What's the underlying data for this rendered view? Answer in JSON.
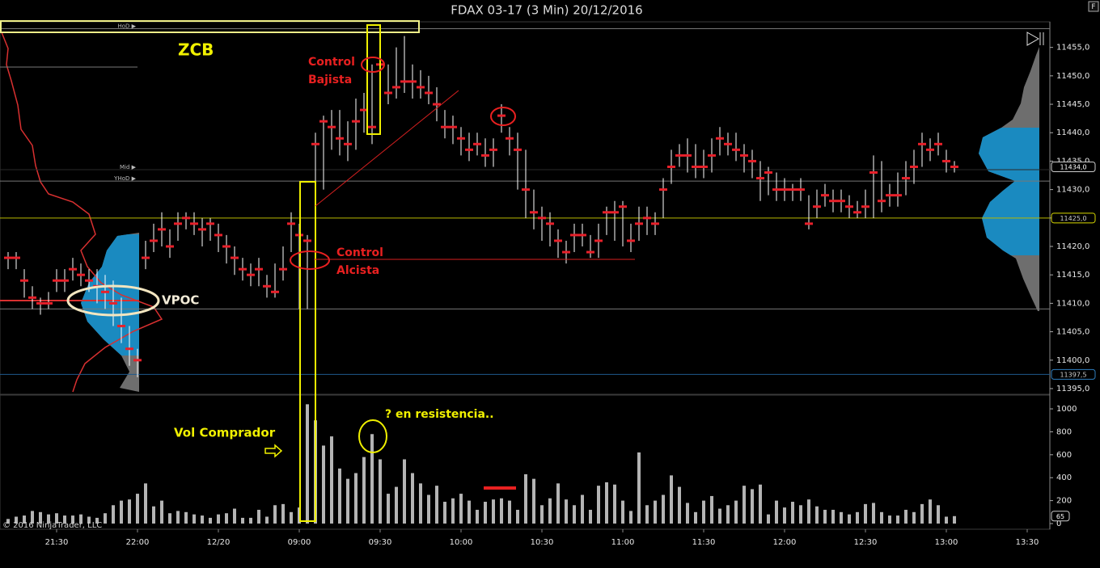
{
  "title": "FDAX 03-17 (3 Min)  20/12/2016",
  "copyright": "© 2016 NinjaTrader, LLC",
  "button": "F",
  "chart_data": [
    {
      "type": "hlc",
      "categories": [
        null,
        null,
        null,
        null,
        null,
        null,
        "21:30",
        null,
        null,
        null,
        null,
        null,
        null,
        null,
        null,
        null,
        "22:00",
        null,
        null,
        null,
        null,
        null,
        null,
        null,
        null,
        null,
        "12/20",
        null,
        null,
        null,
        null,
        null,
        null,
        null,
        null,
        null,
        "09:00",
        null,
        null,
        null,
        null,
        null,
        null,
        null,
        null,
        null,
        "09:30",
        null,
        null,
        null,
        null,
        null,
        null,
        null,
        null,
        null,
        "10:00",
        null,
        null,
        null,
        null,
        null,
        null,
        null,
        null,
        null,
        "10:30",
        null,
        null,
        null,
        null,
        null,
        null,
        null,
        null,
        null,
        "11:00",
        null,
        null,
        null,
        null,
        null,
        null,
        null,
        null,
        null,
        "11:30",
        null,
        null,
        null,
        null,
        null,
        null,
        null,
        null,
        null,
        "12:00",
        null,
        null,
        null,
        null,
        null,
        null,
        null,
        null,
        null,
        "12:30",
        null,
        null,
        null,
        null,
        null,
        null,
        null,
        null,
        null,
        "13:00",
        null,
        null,
        null,
        null,
        null,
        null,
        null,
        null,
        null,
        "13:30"
      ],
      "high": [
        11419,
        11419,
        11416,
        11413,
        11411,
        11412,
        11416,
        11416,
        11418,
        11417,
        11416,
        11416,
        11415,
        11414,
        11411,
        11406,
        11402,
        11421,
        11424,
        11426,
        11423,
        11426,
        11426,
        11426,
        11425,
        11425,
        11424,
        11422,
        11420,
        11418,
        11417,
        11418,
        11415,
        11417,
        11420,
        11426,
        11424,
        11422,
        11440,
        11443,
        11444,
        11444,
        11442,
        11446,
        11447,
        11452,
        11456,
        11452,
        11455,
        11457,
        11452,
        11451,
        11450,
        11448,
        11444,
        11443,
        11441,
        11440,
        11440,
        11439,
        11439,
        11445,
        11441,
        11440,
        11437,
        11430,
        11427,
        11426,
        11423,
        11421,
        11424,
        11424,
        11422,
        11424,
        11427,
        11428,
        11428,
        11424,
        11427,
        11427,
        11426,
        11432,
        11437,
        11438,
        11439,
        11438,
        11437,
        11439,
        11441,
        11440,
        11440,
        11438,
        11437,
        11435,
        11434,
        11433,
        11432,
        11431,
        11432,
        11429,
        11430,
        11431,
        11430,
        11430,
        11429,
        11428,
        11430,
        11436,
        11435,
        11431,
        11433,
        11435,
        11437,
        11440,
        11439,
        11440,
        11437,
        11435,
        null,
        null,
        null,
        null,
        null,
        null,
        null,
        null,
        null
      ],
      "low": [
        11416,
        11416,
        11411,
        11409,
        11408,
        11409,
        11412,
        11412,
        11414,
        11413,
        11412,
        11410,
        11409,
        11406,
        11403,
        11399,
        11397,
        11416,
        11419,
        11420,
        11418,
        11421,
        11423,
        11422,
        11420,
        11421,
        11419,
        11417,
        11415,
        11414,
        11413,
        11413,
        11411,
        11411,
        11414,
        11419,
        11409,
        11409,
        11428,
        11430,
        11437,
        11436,
        11435,
        11437,
        11440,
        11438,
        11440,
        11445,
        11446,
        11447,
        11446,
        11446,
        11445,
        11442,
        11439,
        11438,
        11436,
        11435,
        11436,
        11434,
        11434,
        11440,
        11436,
        11430,
        11425,
        11423,
        11421,
        11420,
        11418,
        11417,
        11419,
        11420,
        11418,
        11418,
        11422,
        11421,
        11420,
        11419,
        11421,
        11422,
        11422,
        11425,
        11431,
        11434,
        11433,
        11432,
        11432,
        11433,
        11436,
        11436,
        11435,
        11433,
        11432,
        11428,
        11429,
        11428,
        11428,
        11428,
        11428,
        11423,
        11425,
        11427,
        11426,
        11426,
        11425,
        11425,
        11425,
        11425,
        11426,
        11427,
        11427,
        11429,
        11431,
        11434,
        11435,
        11436,
        11433,
        11433,
        null,
        null,
        null,
        null,
        null,
        null,
        null,
        null,
        null
      ],
      "close": [
        11418,
        11418,
        11414,
        11411,
        11410,
        11410,
        11414,
        11414,
        11416,
        11415,
        11414,
        11413,
        11412,
        11410,
        11406,
        11402,
        11400,
        11418,
        11421,
        11423,
        11420,
        11424,
        11425,
        11424,
        11423,
        11424,
        11422,
        11420,
        11418,
        11416,
        11415,
        11416,
        11413,
        11412,
        11416,
        11424,
        11422,
        11421,
        11438,
        11442,
        11441,
        11439,
        11438,
        11442,
        11444,
        11441,
        11452,
        11447,
        11448,
        11449,
        11449,
        11448,
        11447,
        11445,
        11441,
        11441,
        11439,
        11437,
        11438,
        11436,
        11437,
        11443,
        11439,
        11437,
        11430,
        11426,
        11425,
        11424,
        11421,
        11419,
        11422,
        11422,
        11419,
        11421,
        11426,
        11426,
        11427,
        11421,
        11424,
        11425,
        11424,
        11430,
        11434,
        11436,
        11436,
        11434,
        11434,
        11436,
        11439,
        11438,
        11437,
        11436,
        11435,
        11432,
        11433,
        11430,
        11430,
        11430,
        11430,
        11424,
        11427,
        11429,
        11428,
        11428,
        11427,
        11426,
        11427,
        11433,
        11428,
        11429,
        11429,
        11432,
        11434,
        11438,
        11437,
        11438,
        11435,
        11434,
        null,
        null,
        null,
        null,
        null,
        null,
        null,
        null,
        null
      ],
      "bar_color": "#ffffff",
      "close_color": "#e8202a",
      "ylim": [
        11394,
        11459.5
      ],
      "yticks": [
        {
          "value": 11395,
          "label": "11395,0"
        },
        {
          "value": 11400,
          "label": "11400,0"
        },
        {
          "value": 11405,
          "label": "11405,0"
        },
        {
          "value": 11410,
          "label": "11410,0"
        },
        {
          "value": 11415,
          "label": "11415,0"
        },
        {
          "value": 11420,
          "label": "11420,0"
        },
        {
          "value": 11425,
          "label": "11425,0"
        },
        {
          "value": 11430,
          "label": "11430,0"
        },
        {
          "value": 11435,
          "label": "11435,0"
        },
        {
          "value": 11440,
          "label": "11440,0"
        },
        {
          "value": 11445,
          "label": "11445,0"
        },
        {
          "value": 11450,
          "label": "11450,0"
        },
        {
          "value": 11455,
          "label": "11455,0"
        }
      ],
      "levels": [
        {
          "value": 11458.3,
          "color": "#777777",
          "label": "HoD ▶"
        },
        {
          "value": 11433.5,
          "color": "#2a2a2a",
          "label": "Mid ▶"
        },
        {
          "value": 11431.5,
          "color": "#777777",
          "label": "YHoD ▶"
        },
        {
          "value": 11425,
          "color": "#b8b800"
        },
        {
          "value": 11409,
          "color": "#777777"
        },
        {
          "value": 11397.5,
          "color": "#1e5a8c"
        }
      ],
      "price_labels": [
        {
          "value": 11434,
          "label": "11434,0",
          "color": "#cccccc"
        },
        {
          "value": 11425,
          "label": "11425,0",
          "color": "#d8d800"
        },
        {
          "value": 11397.5,
          "label": "11397,5",
          "color": "#2f7fc0"
        }
      ],
      "annotations": [
        "ZCB",
        "Control",
        "Bajista",
        "Control",
        "Alcista",
        "VPOC"
      ]
    },
    {
      "type": "bar",
      "values": [
        40,
        60,
        70,
        110,
        100,
        80,
        90,
        70,
        70,
        80,
        60,
        50,
        90,
        160,
        200,
        210,
        260,
        350,
        150,
        200,
        90,
        110,
        100,
        80,
        70,
        50,
        80,
        90,
        130,
        50,
        50,
        120,
        60,
        160,
        170,
        100,
        140,
        1040,
        900,
        680,
        760,
        480,
        390,
        440,
        580,
        780,
        560,
        260,
        320,
        560,
        440,
        350,
        250,
        330,
        190,
        220,
        260,
        200,
        120,
        190,
        210,
        220,
        200,
        120,
        430,
        390,
        160,
        220,
        350,
        210,
        160,
        250,
        120,
        330,
        360,
        340,
        200,
        110,
        620,
        160,
        200,
        250,
        420,
        320,
        180,
        100,
        200,
        240,
        130,
        160,
        200,
        330,
        300,
        340,
        80,
        200,
        140,
        190,
        160,
        210,
        150,
        120,
        120,
        100,
        80,
        100,
        170,
        180,
        100,
        70,
        70,
        120,
        100,
        170,
        210,
        160,
        60,
        65,
        null,
        null,
        null,
        null,
        null,
        null,
        null,
        null,
        null
      ],
      "color": "#b4b4b4",
      "ylim": [
        0,
        1120
      ],
      "yticks": [
        0,
        200,
        400,
        600,
        800,
        1000
      ],
      "annotations": [
        "Vol Comprador",
        "? en resistencia.."
      ]
    }
  ]
}
